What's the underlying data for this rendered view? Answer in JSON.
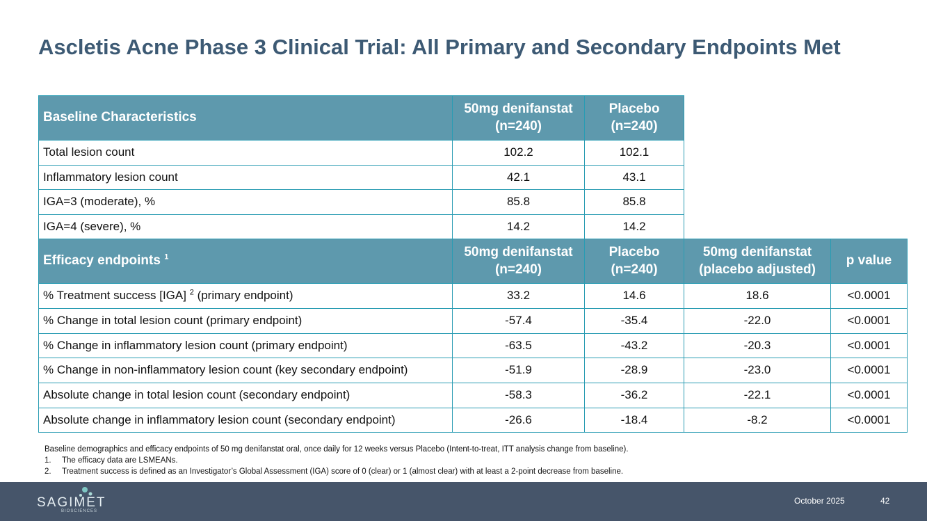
{
  "title": "Ascletis Acne Phase 3 Clinical Trial: All Primary and Secondary Endpoints Met",
  "baseline_table": {
    "header": [
      "Baseline Characteristics",
      "50mg denifanstat\n(n=240)",
      "Placebo\n(n=240)"
    ],
    "rows": [
      [
        "Total lesion count",
        "102.2",
        "102.1"
      ],
      [
        "Inflammatory lesion count",
        "42.1",
        "43.1"
      ],
      [
        "IGA=3 (moderate), %",
        "85.8",
        "85.8"
      ],
      [
        "IGA=4 (severe), %",
        "14.2",
        "14.2"
      ]
    ]
  },
  "efficacy_table": {
    "header": [
      {
        "text": "Efficacy endpoints",
        "sup": "1"
      },
      "50mg denifanstat\n(n=240)",
      "Placebo\n(n=240)",
      "50mg denifanstat\n(placebo adjusted)",
      "p value"
    ],
    "rows": [
      [
        {
          "text": "% Treatment success [IGA]",
          "sup": "2",
          "after": "(primary endpoint)"
        },
        "33.2",
        "14.6",
        "18.6",
        "<0.0001"
      ],
      [
        "% Change in total lesion count (primary endpoint)",
        "-57.4",
        "-35.4",
        "-22.0",
        "<0.0001"
      ],
      [
        "% Change in inflammatory lesion count (primary endpoint)",
        "-63.5",
        "-43.2",
        "-20.3",
        "<0.0001"
      ],
      [
        "% Change in non-inflammatory lesion count (key secondary endpoint)",
        "-51.9",
        "-28.9",
        "-23.0",
        "<0.0001"
      ],
      [
        "Absolute change in total lesion count (secondary endpoint)",
        "-58.3",
        "-36.2",
        "-22.1",
        "<0.0001"
      ],
      [
        "Absolute change in inflammatory lesion count (secondary endpoint)",
        "-26.6",
        "-18.4",
        "-8.2",
        "<0.0001"
      ]
    ]
  },
  "footnotes": {
    "intro": "Baseline demographics and efficacy endpoints of 50 mg denifanstat oral, once daily for 12 weeks versus Placebo (Intent-to-treat, ITT analysis change from baseline).",
    "items": [
      {
        "number": "1.",
        "text": "The efficacy data are LSMEANs."
      },
      {
        "number": "2.",
        "text": "Treatment success is defined as an Investigator’s Global Assessment (IGA) score of 0 (clear) or 1 (almost clear) with at least a 2-point decrease from baseline."
      }
    ]
  },
  "footer": {
    "logo": "SAGIMET",
    "logo_sub": "BIOSCIENCES",
    "date": "October 2025",
    "page": "42"
  }
}
